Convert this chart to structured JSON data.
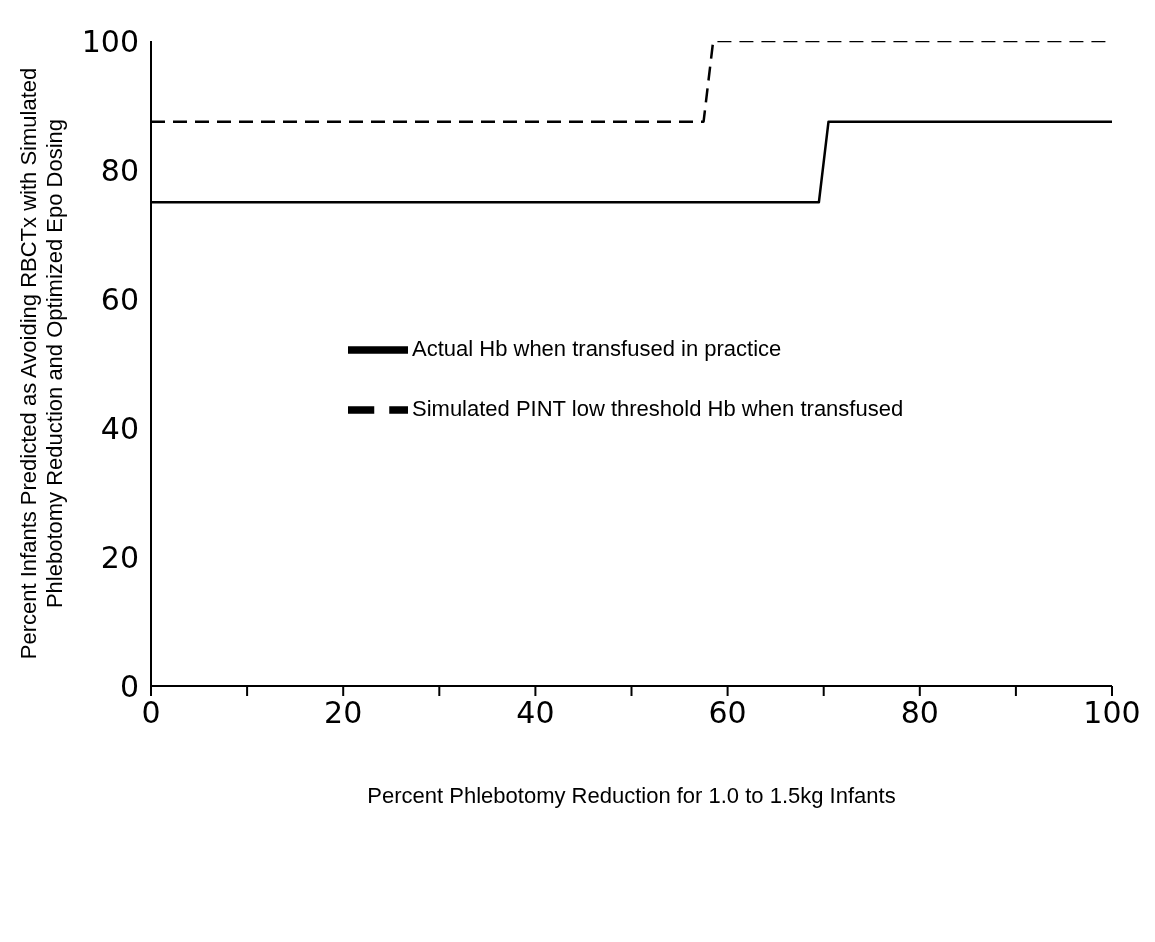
{
  "chart_data": {
    "type": "line",
    "xlabel": "Percent Phlebotomy Reduction for 1.0 to 1.5kg Infants",
    "ylabel": "Percent Infants Predicted as Avoiding RBCTx with Simulated\nPhlebotomy Reduction and Optimized Epo Dosing",
    "xlim": [
      0,
      100
    ],
    "xticks": [
      0,
      {
        "value": 10,
        "label": null
      },
      20,
      {
        "value": 30,
        "label": null
      },
      40,
      {
        "value": 50,
        "label": null
      },
      60,
      {
        "value": 70,
        "label": null
      },
      80,
      {
        "value": 90,
        "label": null
      },
      100
    ],
    "ylim": [
      0,
      100
    ],
    "yticks": [
      0,
      20,
      40,
      60,
      80,
      100
    ],
    "grid": false,
    "legend": "center",
    "marker": "none",
    "series": [
      {
        "name": "Actual Hb when transfused in practice",
        "color": "#000000",
        "line_style": "solid",
        "x": [
          0,
          69.5,
          70.5,
          100
        ],
        "values": [
          75,
          75,
          87.5,
          87.5
        ]
      },
      {
        "name": "Simulated PINT low threshold Hb when transfused",
        "color": "#000000",
        "line_style": "dashed",
        "x": [
          0,
          57.5,
          58.5,
          100
        ],
        "values": [
          87.5,
          87.5,
          100,
          100
        ]
      }
    ]
  }
}
